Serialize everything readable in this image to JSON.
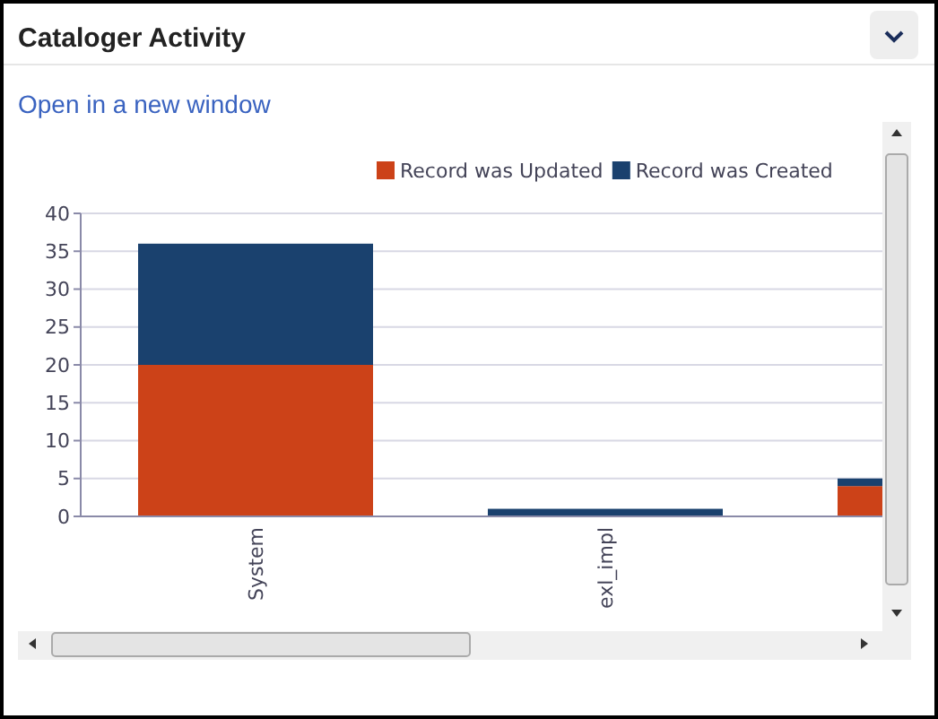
{
  "chart_data": {
    "type": "bar",
    "title": "Cataloger Activity",
    "annotations": [
      "Open in a new window"
    ],
    "categories": [
      "System",
      "exl_impl",
      null
    ],
    "stacked": true,
    "series": [
      {
        "name": "Record was Updated",
        "color": "#cc4218",
        "values": [
          20,
          0,
          4
        ]
      },
      {
        "name": "Record was Created",
        "color": "#1a416e",
        "values": [
          16,
          1,
          1
        ]
      }
    ],
    "ylim": [
      0,
      40
    ],
    "yticks": [
      0,
      5,
      10,
      15,
      20,
      25,
      30,
      35,
      40
    ],
    "grid": "y",
    "legend": "top right"
  }
}
